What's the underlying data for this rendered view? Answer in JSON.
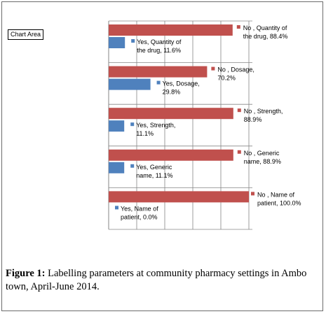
{
  "chart_area_label": "Chart Area",
  "figure": {
    "label": "Figure 1:",
    "caption": "Labelling parameters at community pharmacy settings in Ambo town, April-June 2014."
  },
  "colors": {
    "no": "#c0504d",
    "yes": "#4f81bd",
    "grid": "#868686"
  },
  "chart_data": {
    "type": "bar",
    "orientation": "horizontal",
    "grid": true,
    "xlim": [
      0,
      100
    ],
    "categories": [
      "Quantity of the drug",
      "Dosage",
      "Strength",
      "Generic name",
      "Name of patient"
    ],
    "series": [
      {
        "name": "No",
        "values": [
          88.4,
          70.2,
          88.9,
          88.9,
          100.0
        ]
      },
      {
        "name": "Yes",
        "values": [
          11.6,
          29.8,
          11.1,
          11.1,
          0.0
        ]
      }
    ],
    "data_labels": {
      "no": [
        [
          "No , Quantity of",
          "the drug, 88.4%"
        ],
        [
          "No , Dosage,",
          "70.2%"
        ],
        [
          "No , Strength,",
          "88.9%"
        ],
        [
          "No , Generic",
          "name, 88.9%"
        ],
        [
          "No , Name of",
          "patient, 100.0%"
        ]
      ],
      "yes": [
        [
          "Yes, Quantity of",
          "the drug, 11.6%"
        ],
        [
          "Yes, Dosage,",
          "29.8%"
        ],
        [
          "Yes, Strength,",
          "11.1%"
        ],
        [
          "Yes, Generic",
          "name, 11.1%"
        ],
        [
          "Yes, Name of",
          "patient, 0.0%"
        ]
      ]
    }
  }
}
